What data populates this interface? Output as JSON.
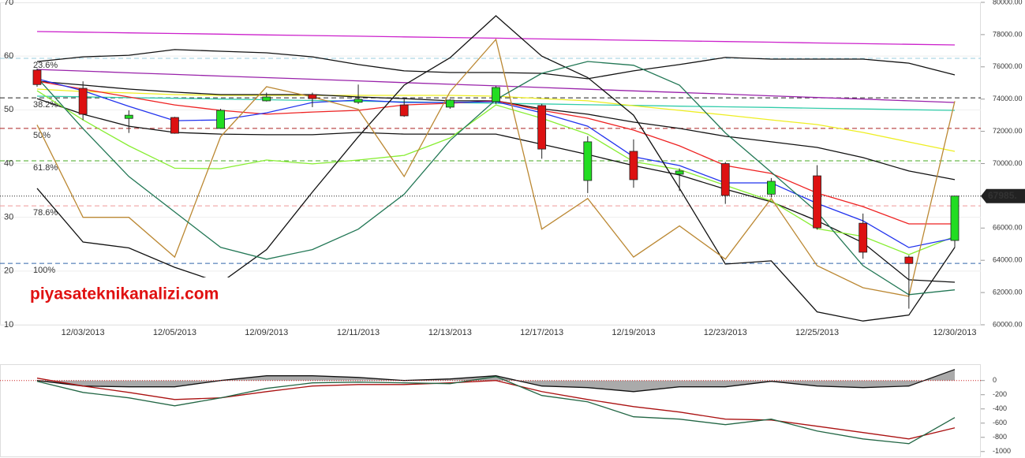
{
  "chart_data": [
    {
      "type": "candlestick",
      "categories": [
        null,
        "12/03/2013",
        null,
        "12/05/2013",
        null,
        "12/09/2013",
        null,
        "12/11/2013",
        null,
        "12/13/2013",
        null,
        "12/17/2013",
        null,
        "12/19/2013",
        null,
        "12/23/2013",
        null,
        "12/25/2013",
        null,
        null,
        "12/30/2013"
      ],
      "open": [
        75800,
        74670,
        72800,
        72860,
        72180,
        73890,
        74280,
        73800,
        73640,
        73500,
        73840,
        73600,
        68950,
        70760,
        69340,
        70000,
        68100,
        69240,
        66300,
        64200,
        65230
      ],
      "high": [
        75900,
        75100,
        73300,
        72900,
        73400,
        74400,
        74400,
        74900,
        74100,
        74000,
        74800,
        73700,
        71700,
        71500,
        69700,
        70100,
        69100,
        69900,
        66900,
        64300,
        68000
      ],
      "low": [
        74770,
        72700,
        71900,
        71850,
        72150,
        73850,
        73500,
        73700,
        72900,
        73400,
        73700,
        70300,
        68170,
        68500,
        68300,
        67500,
        67900,
        65900,
        64100,
        61000,
        64800
      ],
      "close": [
        74900,
        73060,
        73000,
        71880,
        73300,
        74130,
        74030,
        73990,
        72960,
        73940,
        74720,
        70900,
        71350,
        69000,
        69540,
        68020,
        68900,
        66010,
        64500,
        63800,
        67985
      ],
      "up_color": "#22dd22",
      "down_color": "#dd1111",
      "ylim": [
        60000,
        80000
      ],
      "yticks": [
        {
          "value": 60000,
          "label": "60000.00"
        },
        {
          "value": 62000,
          "label": "62000.00"
        },
        {
          "value": 64000,
          "label": "64000.00"
        },
        {
          "value": 66000,
          "label": "66000.00"
        },
        {
          "value": 68000,
          "label": "68000.00"
        },
        {
          "value": 70000,
          "label": "70000.00"
        },
        {
          "value": 72000,
          "label": "72000.00"
        },
        {
          "value": 74000,
          "label": "74000.00"
        },
        {
          "value": 76000,
          "label": "76000.00"
        },
        {
          "value": 78000,
          "label": "78000.00"
        },
        {
          "value": 80000,
          "label": "80000.00"
        }
      ],
      "y2lim": [
        10,
        70
      ],
      "y2ticks": [
        10,
        20,
        30,
        40,
        50,
        60,
        70
      ],
      "grid": true,
      "series": [
        {
          "color": "#cc22cc",
          "values": [
            78190,
            78150,
            78110,
            78070,
            78030,
            77980,
            77940,
            77900,
            77860,
            77820,
            77780,
            77730,
            77690,
            77650,
            77610,
            77570,
            77530,
            77480,
            77440,
            77400,
            77360
          ]
        },
        {
          "color": "#9922aa",
          "values": [
            75840,
            75740,
            75630,
            75530,
            75430,
            75330,
            75230,
            75130,
            75020,
            74920,
            74820,
            74720,
            74610,
            74510,
            74410,
            74310,
            74200,
            74100,
            74000,
            73890,
            73790
          ]
        },
        {
          "color": "#33ccaa",
          "values": [
            74180,
            74140,
            74090,
            74050,
            74000,
            73960,
            73910,
            73870,
            73830,
            73780,
            73740,
            73700,
            73650,
            73610,
            73560,
            73520,
            73480,
            73430,
            73390,
            73340,
            73300
          ]
        },
        {
          "color": "#eeee22",
          "values": [
            74620,
            74470,
            74380,
            74280,
            74230,
            74230,
            74230,
            74230,
            74230,
            74230,
            74180,
            74030,
            73890,
            73590,
            73300,
            73010,
            72710,
            72420,
            71930,
            71340,
            70760
          ]
        },
        {
          "color": "#111111",
          "values": [
            76330,
            76620,
            76720,
            77070,
            76970,
            76870,
            76620,
            76140,
            75750,
            75650,
            75650,
            75600,
            75260,
            75750,
            76140,
            76580,
            76480,
            76480,
            76480,
            76230,
            75500
          ]
        },
        {
          "color": "#111111",
          "values": [
            75110,
            74870,
            74620,
            74430,
            74280,
            74280,
            74280,
            74130,
            74030,
            73890,
            73890,
            73400,
            73060,
            72570,
            72180,
            71690,
            71350,
            71000,
            70370,
            69540,
            69000
          ]
        },
        {
          "color": "#111111",
          "values": [
            74030,
            73060,
            72320,
            71930,
            71830,
            71790,
            71790,
            71930,
            71830,
            71830,
            71830,
            71200,
            70560,
            69880,
            69290,
            68410,
            67630,
            66450,
            65090,
            62790,
            62640
          ]
        },
        {
          "color": "#ee2222",
          "values": [
            75110,
            74620,
            74130,
            73640,
            73300,
            73060,
            73200,
            73300,
            73640,
            73740,
            73890,
            73300,
            72810,
            72080,
            71100,
            69880,
            69390,
            68170,
            67330,
            66260,
            66260
          ]
        },
        {
          "color": "#88ee33",
          "values": [
            74520,
            72710,
            71100,
            69710,
            69680,
            70220,
            69980,
            70220,
            70510,
            71590,
            73640,
            72810,
            71830,
            70120,
            69630,
            68650,
            67680,
            65960,
            65480,
            64350,
            65480
          ]
        },
        {
          "color": "#2233ee",
          "values": [
            75260,
            74520,
            73550,
            72660,
            72710,
            73150,
            73790,
            73940,
            73790,
            73790,
            73840,
            73150,
            72320,
            70420,
            69880,
            68800,
            68800,
            67530,
            66450,
            64790,
            65380
          ]
        },
        {
          "color": "#111111",
          "axis": "y2",
          "values": [
            35.4,
            25.4,
            24.3,
            20.7,
            17.8,
            24.0,
            34.7,
            45.0,
            54.6,
            59.7,
            67.5,
            60.0,
            56.0,
            49.0,
            35.4,
            21.3,
            21.9,
            12.4,
            10.7,
            11.8,
            24.4
          ]
        },
        {
          "color": "#bb8833",
          "axis": "y2",
          "values": [
            47.2,
            30.0,
            30.0,
            22.6,
            45.0,
            54.3,
            52.4,
            50.1,
            37.6,
            53.4,
            63.1,
            27.8,
            33.5,
            22.6,
            28.4,
            22.2,
            33.5,
            21.0,
            16.9,
            15.3,
            51.6
          ]
        },
        {
          "color": "#227755",
          "axis": "y2",
          "values": [
            56.0,
            46.5,
            37.6,
            31.0,
            24.4,
            22.2,
            24.0,
            27.8,
            34.3,
            44.3,
            51.9,
            56.8,
            59.0,
            58.3,
            54.6,
            45.7,
            38.4,
            31.0,
            21.0,
            15.6,
            16.5
          ]
        }
      ],
      "fib_levels": [
        {
          "value": 76530,
          "label": "23.6%",
          "color": "#99ccdd"
        },
        {
          "value": 74080,
          "label": "38.2%",
          "color": "#222222"
        },
        {
          "value": 72180,
          "label": "50%",
          "color": "#aa2222"
        },
        {
          "value": 70170,
          "label": "61.8%",
          "color": "#44aa22"
        },
        {
          "value": 67380,
          "label": "78.6%",
          "color": "#ee9999"
        },
        {
          "value": 63810,
          "label": "100%",
          "color": "#3366aa"
        }
      ],
      "last_price": {
        "value": 67985,
        "label": "67985."
      },
      "watermark": "piyasateknikanalizi.com"
    },
    {
      "type": "line",
      "ylim": [
        -1080,
        230
      ],
      "yticks": [
        0,
        -200,
        -400,
        -600,
        -800,
        -1000
      ],
      "zero_line_color": "#cc2222",
      "series": [
        {
          "color": "#111111",
          "fill": "#aaaaaa",
          "values": [
            0,
            -78,
            -89,
            -89,
            0,
            67,
            67,
            44,
            0,
            22,
            67,
            -78,
            -100,
            -156,
            -89,
            -89,
            -11,
            -78,
            -100,
            -78,
            156
          ]
        },
        {
          "color": "#aa1111",
          "values": [
            33,
            -78,
            -167,
            -267,
            -244,
            -156,
            -78,
            -56,
            -56,
            -33,
            0,
            -156,
            -267,
            -367,
            -444,
            -544,
            -556,
            -644,
            -733,
            -822,
            -667
          ]
        },
        {
          "color": "#226644",
          "values": [
            -11,
            -167,
            -244,
            -356,
            -244,
            -111,
            -33,
            -22,
            -33,
            -44,
            56,
            -211,
            -300,
            -511,
            -544,
            -622,
            -544,
            -711,
            -822,
            -889,
            -522
          ]
        }
      ]
    }
  ]
}
